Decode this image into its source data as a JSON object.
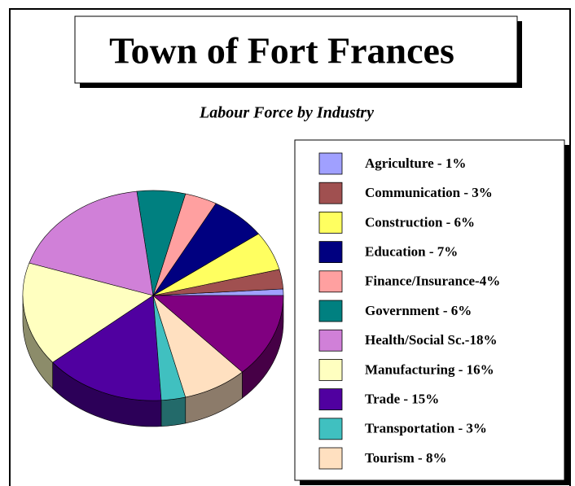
{
  "chart_data": {
    "type": "pie3d",
    "title": "Town of Fort Frances",
    "subtitle": "Labour Force by Industry",
    "categories": [
      "Agriculture - 1%",
      "Communication - 3%",
      "Construction - 6%",
      "Education - 7%",
      "Finance/Insurance-4%",
      "Government - 6%",
      "Health/Social Sc.-18%",
      "Manufacturing - 16%",
      "Trade - 15%",
      "Transportation - 3%",
      "Tourism - 8%",
      null
    ],
    "values": [
      1,
      3,
      6,
      7,
      4,
      6,
      18,
      16,
      15,
      3,
      8,
      13
    ],
    "colors": [
      "#a0a0ff",
      "#a05050",
      "#ffff60",
      "#000080",
      "#ffa0a0",
      "#008080",
      "#d080d8",
      "#ffffc0",
      "#5000a0",
      "#40c0c0",
      "#ffe0c0",
      "#800080"
    ]
  }
}
